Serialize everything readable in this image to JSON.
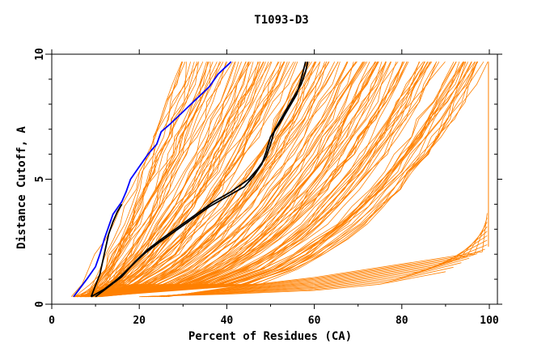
{
  "chart_data": {
    "type": "line",
    "title": "T1093-D3",
    "xlabel": "Percent of Residues (CA)",
    "ylabel": "Distance Cutoff, A",
    "xlim": [
      0,
      100
    ],
    "ylim": [
      0,
      10
    ],
    "x_ticks": [
      0,
      20,
      40,
      60,
      80,
      100
    ],
    "y_ticks": [
      0,
      5,
      10
    ],
    "grid": false,
    "legend": "none",
    "colors": {
      "background": "#ffffff",
      "axis": "#000000",
      "models": "#ff8000",
      "highlight_black": "#000000",
      "highlight_blue": "#0000ff"
    },
    "series": [
      {
        "color": "#0000ff",
        "x": [
          5,
          8,
          10,
          11,
          12,
          13,
          14,
          16,
          17,
          18,
          20,
          22,
          24,
          25,
          27,
          30,
          33,
          36,
          38,
          41
        ],
        "y": [
          0.3,
          1,
          1.5,
          2,
          2.6,
          3.1,
          3.6,
          4.1,
          4.5,
          5,
          5.5,
          6,
          6.4,
          6.9,
          7.2,
          7.7,
          8.2,
          8.7,
          9.2,
          9.7
        ]
      },
      {
        "color": "#000000",
        "x": [
          9,
          12,
          15,
          18,
          21,
          24,
          28,
          32,
          36,
          40,
          44,
          46,
          48,
          49,
          50,
          52,
          54,
          56,
          57,
          58
        ],
        "y": [
          0.3,
          0.6,
          1,
          1.5,
          2,
          2.4,
          2.9,
          3.4,
          3.9,
          4.3,
          4.7,
          5.1,
          5.6,
          6.1,
          6.7,
          7.2,
          7.8,
          8.4,
          9,
          9.7
        ]
      },
      {
        "color": "#000000",
        "x": [
          10,
          13,
          16,
          19,
          22,
          25,
          29,
          33,
          37,
          41,
          45,
          47,
          49,
          50,
          51,
          53,
          55,
          57,
          58,
          58.5
        ],
        "y": [
          0.3,
          0.7,
          1.1,
          1.7,
          2.2,
          2.6,
          3.1,
          3.6,
          4.1,
          4.5,
          5,
          5.4,
          5.9,
          6.4,
          7,
          7.6,
          8.2,
          8.8,
          9.3,
          9.7
        ]
      },
      {
        "color": "#000000",
        "x": [
          9,
          11,
          12,
          13,
          14,
          15,
          16
        ],
        "y": [
          0.3,
          1.2,
          2,
          2.8,
          3.3,
          3.7,
          4
        ]
      }
    ]
  }
}
